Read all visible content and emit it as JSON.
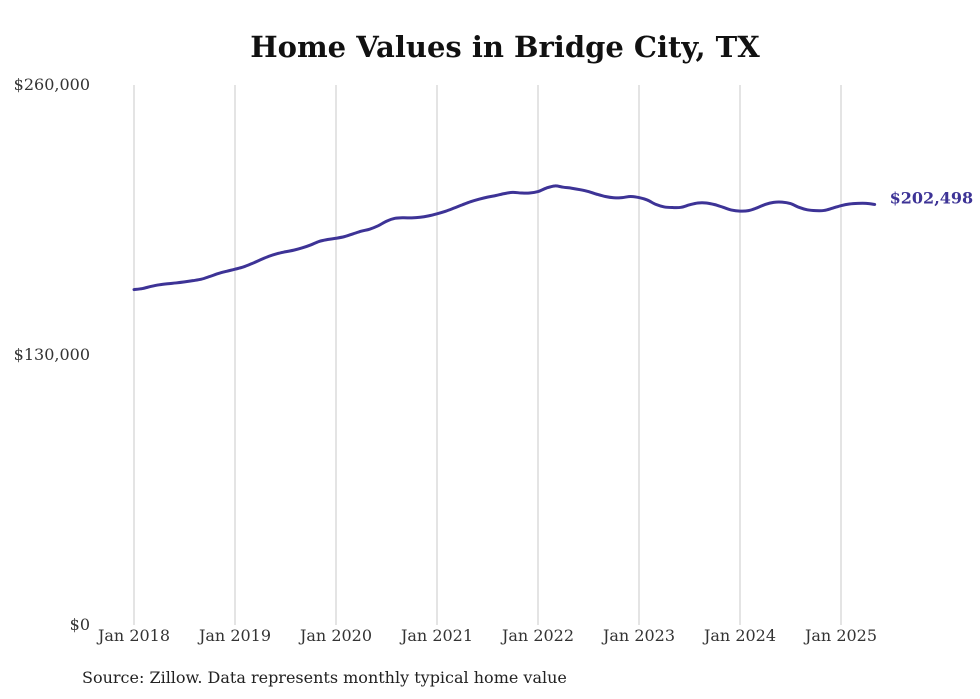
{
  "chart_data": {
    "type": "line",
    "title": "Home Values in Bridge City, TX",
    "source_note": "Source: Zillow. Data represents monthly typical home value",
    "xlabel": "",
    "ylabel": "",
    "x_ticks": [
      "Jan 2018",
      "Jan 2019",
      "Jan 2020",
      "Jan 2021",
      "Jan 2022",
      "Jan 2023",
      "Jan 2024",
      "Jan 2025"
    ],
    "y_ticks": [
      "$0",
      "$130,000",
      "$260,000"
    ],
    "y_tick_values": [
      0,
      130000,
      260000
    ],
    "ylim": [
      0,
      260000
    ],
    "x_range": [
      "2018-01",
      "2025-05"
    ],
    "grid": "vertical",
    "line_color": "#3d3396",
    "end_label": "$202,498",
    "series": [
      {
        "x": [
          "2018-01",
          "2018-02",
          "2018-03",
          "2018-04",
          "2018-05",
          "2018-06",
          "2018-07",
          "2018-08",
          "2018-09",
          "2018-10",
          "2018-11",
          "2018-12",
          "2019-01",
          "2019-02",
          "2019-03",
          "2019-04",
          "2019-05",
          "2019-06",
          "2019-07",
          "2019-08",
          "2019-09",
          "2019-10",
          "2019-11",
          "2019-12",
          "2020-01",
          "2020-02",
          "2020-03",
          "2020-04",
          "2020-05",
          "2020-06",
          "2020-07",
          "2020-08",
          "2020-09",
          "2020-10",
          "2020-11",
          "2020-12",
          "2021-01",
          "2021-02",
          "2021-03",
          "2021-04",
          "2021-05",
          "2021-06",
          "2021-07",
          "2021-08",
          "2021-09",
          "2021-10",
          "2021-11",
          "2021-12",
          "2022-01",
          "2022-02",
          "2022-03",
          "2022-04",
          "2022-05",
          "2022-06",
          "2022-07",
          "2022-08",
          "2022-09",
          "2022-10",
          "2022-11",
          "2022-12",
          "2023-01",
          "2023-02",
          "2023-03",
          "2023-04",
          "2023-05",
          "2023-06",
          "2023-07",
          "2023-08",
          "2023-09",
          "2023-10",
          "2023-11",
          "2023-12",
          "2024-01",
          "2024-02",
          "2024-03",
          "2024-04",
          "2024-05",
          "2024-06",
          "2024-07",
          "2024-08",
          "2024-09",
          "2024-10",
          "2024-11",
          "2024-12",
          "2025-01",
          "2025-02",
          "2025-03",
          "2025-04",
          "2025-05"
        ],
        "values": [
          161500,
          162000,
          163000,
          163800,
          164300,
          164700,
          165200,
          165800,
          166500,
          167800,
          169200,
          170300,
          171300,
          172400,
          174000,
          175800,
          177500,
          178800,
          179700,
          180500,
          181600,
          183000,
          184700,
          185600,
          186200,
          187000,
          188300,
          189600,
          190600,
          192200,
          194400,
          195800,
          196100,
          196000,
          196300,
          197000,
          198000,
          199200,
          200700,
          202300,
          203800,
          205000,
          206000,
          206800,
          207700,
          208300,
          208000,
          208000,
          208700,
          210400,
          211400,
          210800,
          210300,
          209600,
          208700,
          207400,
          206300,
          205700,
          205800,
          206300,
          205800,
          204600,
          202500,
          201300,
          201000,
          201100,
          202300,
          203200,
          203200,
          202400,
          201100,
          199800,
          199300,
          199500,
          200800,
          202500,
          203500,
          203600,
          202900,
          201100,
          199900,
          199500,
          199600,
          200700,
          201900,
          202700,
          203000,
          203000,
          202498
        ]
      }
    ]
  }
}
